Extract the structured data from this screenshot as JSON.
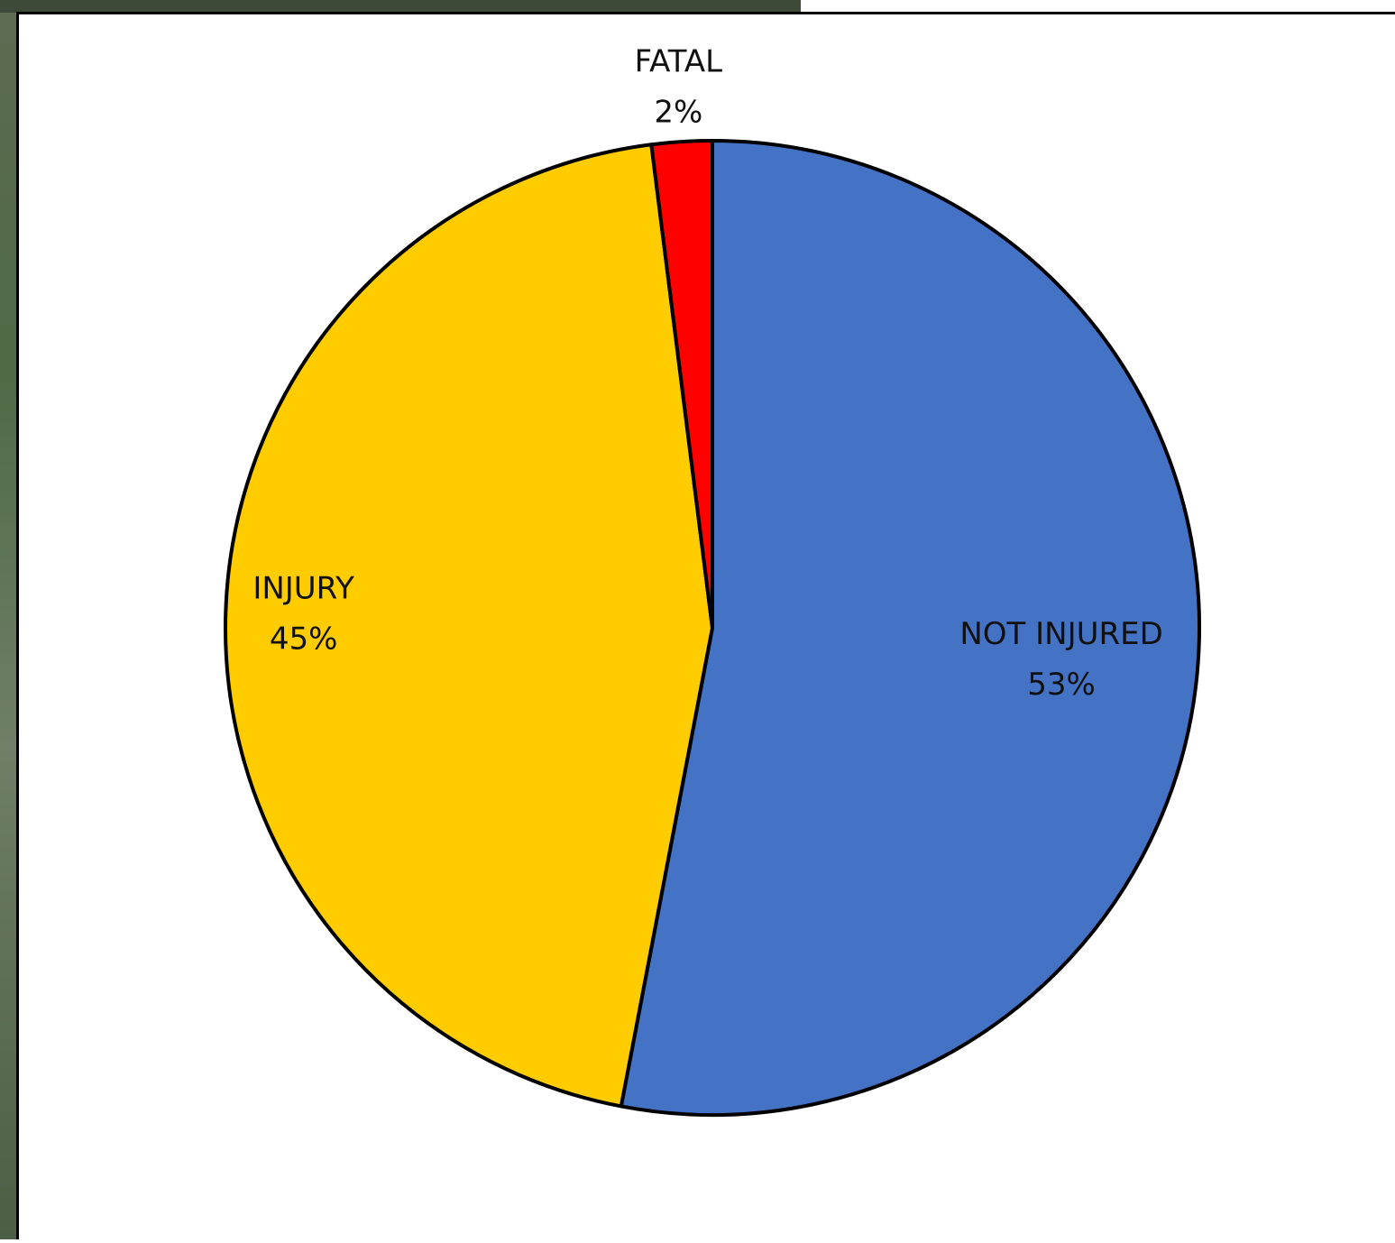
{
  "chart_data": {
    "type": "pie",
    "categories": [
      "NOT INJURED",
      "INJURY",
      "FATAL"
    ],
    "values": [
      53,
      45,
      2
    ],
    "value_labels": [
      "53%",
      "45%",
      "2%"
    ],
    "colors": [
      "#4472c4",
      "#ffcc00",
      "#ff0000"
    ]
  }
}
